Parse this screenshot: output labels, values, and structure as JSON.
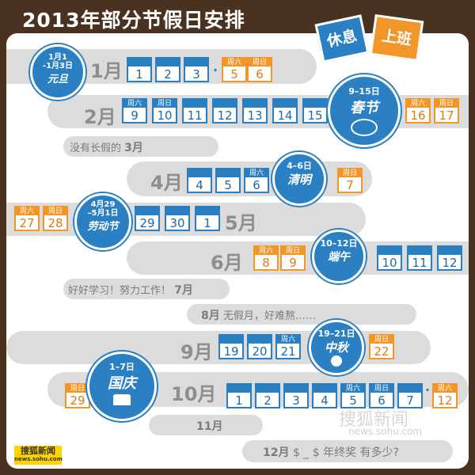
{
  "title": "2013年部分节假日安排",
  "legend": {
    "rest": "休息",
    "work": "上班"
  },
  "months": {
    "jan": "1月",
    "feb": "2月",
    "mar_text": "没有长假的",
    "mar": "3月",
    "apr": "4月",
    "may": "5月",
    "jun": "6月",
    "jul_text": "好好学习！努力工作！",
    "jul": "7月",
    "aug": "8月",
    "aug_text": "无假月，好难熬……",
    "sep": "9月",
    "oct": "10月",
    "nov": "11月",
    "dec": "12月",
    "dec_text": "$ _ $ 年终奖 有多少?"
  },
  "holidays": {
    "newyear": {
      "dates_a": "1月1",
      "dates_b": "-1月3日",
      "name": "元旦"
    },
    "spring": {
      "dates": "9–15日",
      "name": "春节"
    },
    "qingming": {
      "dates": "4–6日",
      "name": "清明"
    },
    "labor": {
      "dates_a": "4月29",
      "dates_b": "–5月1日",
      "name": "劳动节"
    },
    "dragon": {
      "dates": "10–12日",
      "name": "端午"
    },
    "midautumn": {
      "dates": "19–21日",
      "name": "中秋"
    },
    "national": {
      "dates": "1–7日",
      "name": "国庆"
    }
  },
  "days": {
    "jan": [
      {
        "top": "",
        "num": "1"
      },
      {
        "top": "",
        "num": "2"
      },
      {
        "top": "",
        "num": "3"
      }
    ],
    "jan_work": [
      {
        "top": "周六",
        "num": "5"
      },
      {
        "top": "周日",
        "num": "6"
      }
    ],
    "feb": [
      {
        "top": "周六",
        "num": "9"
      },
      {
        "top": "周日",
        "num": "10"
      },
      {
        "top": "",
        "num": "11"
      },
      {
        "top": "",
        "num": "12"
      },
      {
        "top": "",
        "num": "13"
      },
      {
        "top": "",
        "num": "14"
      },
      {
        "top": "",
        "num": "15"
      }
    ],
    "feb_work": [
      {
        "top": "周六",
        "num": "16"
      },
      {
        "top": "周日",
        "num": "17"
      }
    ],
    "apr": [
      {
        "top": "",
        "num": "4"
      },
      {
        "top": "",
        "num": "5"
      },
      {
        "top": "周六",
        "num": "6"
      }
    ],
    "apr_work": [
      {
        "top": "周日",
        "num": "7"
      }
    ],
    "may_work": [
      {
        "top": "周六",
        "num": "27"
      },
      {
        "top": "周日",
        "num": "28"
      }
    ],
    "may": [
      {
        "top": "",
        "num": "29"
      },
      {
        "top": "",
        "num": "30"
      },
      {
        "top": "",
        "num": "1"
      }
    ],
    "jun_work": [
      {
        "top": "周六",
        "num": "8"
      },
      {
        "top": "周日",
        "num": "9"
      }
    ],
    "jun": [
      {
        "top": "",
        "num": "10"
      },
      {
        "top": "",
        "num": "11"
      },
      {
        "top": "",
        "num": "12"
      }
    ],
    "sep": [
      {
        "top": "",
        "num": "19"
      },
      {
        "top": "",
        "num": "20"
      },
      {
        "top": "周六",
        "num": "21"
      }
    ],
    "sep_work": [
      {
        "top": "周日",
        "num": "22"
      }
    ],
    "oct_work_a": [
      {
        "top": "周日",
        "num": "29"
      }
    ],
    "oct": [
      {
        "top": "",
        "num": "1"
      },
      {
        "top": "",
        "num": "2"
      },
      {
        "top": "",
        "num": "3"
      },
      {
        "top": "",
        "num": "4"
      },
      {
        "top": "周六",
        "num": "5"
      },
      {
        "top": "周日",
        "num": "6"
      },
      {
        "top": "",
        "num": "7"
      }
    ],
    "oct_work_b": [
      {
        "top": "周六",
        "num": "12"
      }
    ]
  },
  "footer": {
    "logo_a": "搜狐新闻",
    "logo_b": "news.sohu.com",
    "watermark_a": "搜狐新闻",
    "watermark_b": "news.sohu.com"
  },
  "colors": {
    "rest": "#2a7fc0",
    "work": "#f2962a",
    "band": "#dcdcdc",
    "frame": "#4a3220"
  }
}
